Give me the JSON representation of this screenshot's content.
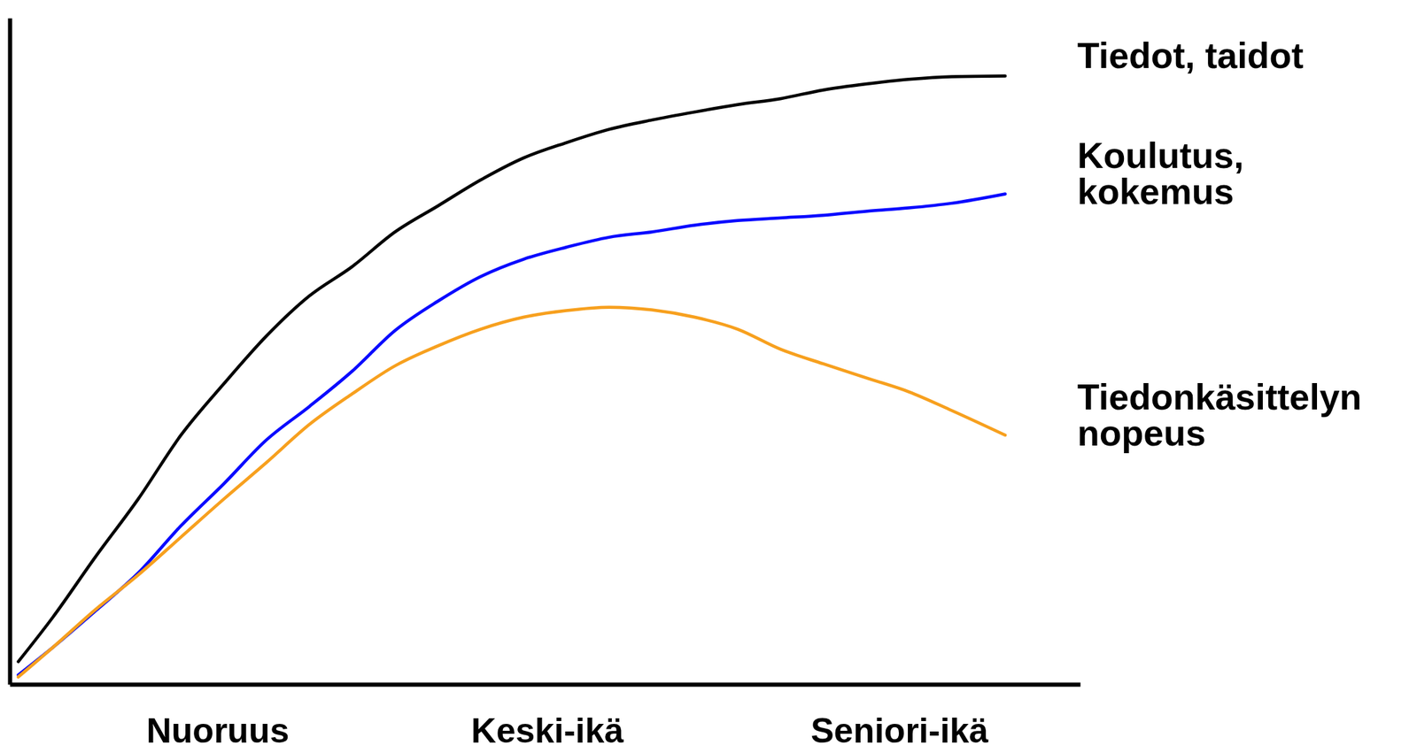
{
  "chart_data": {
    "type": "line",
    "x": [
      0.8,
      4,
      8,
      12,
      16,
      20,
      24,
      28,
      32,
      36,
      40,
      44,
      48,
      52,
      56,
      60,
      64,
      68,
      72,
      76,
      80,
      84,
      88,
      93
    ],
    "xlim": [
      0,
      100
    ],
    "xticks": [
      {
        "value": 19.4,
        "label": "Nuoruus"
      },
      {
        "value": 50.2,
        "label": "Keski-ikä"
      },
      {
        "value": 83.1,
        "label": "Seniori-ikä"
      }
    ],
    "ylim": [
      0,
      100
    ],
    "tick_labels": "x",
    "series": [
      {
        "name": "Tiedot, taidot",
        "color": "#000000",
        "values": [
          3.4,
          10.0,
          19.1,
          27.8,
          37.4,
          45.1,
          52.3,
          58.3,
          62.7,
          67.9,
          71.8,
          75.7,
          79.0,
          81.3,
          83.3,
          84.7,
          85.9,
          87.0,
          87.9,
          89.2,
          90.1,
          90.8,
          91.2,
          91.3
        ]
      },
      {
        "name": "Koulutus, kokemus",
        "color": "#0a0aff",
        "values": [
          1.4,
          5.5,
          11.0,
          16.7,
          23.8,
          30.1,
          36.7,
          41.7,
          47.0,
          53.1,
          57.5,
          61.2,
          63.8,
          65.6,
          67.1,
          67.9,
          68.9,
          69.6,
          70.0,
          70.4,
          71.0,
          71.5,
          72.2,
          73.6
        ]
      },
      {
        "name": "Tiedonkäsittelyn nopeus",
        "color": "#f7a01e",
        "values": [
          1.1,
          5.5,
          11.2,
          16.4,
          22.1,
          27.8,
          33.3,
          39.0,
          43.6,
          47.8,
          50.8,
          53.3,
          55.1,
          56.1,
          56.6,
          56.2,
          55.1,
          53.3,
          50.3,
          48.1,
          46.0,
          43.9,
          41.1,
          37.4
        ]
      }
    ]
  }
}
